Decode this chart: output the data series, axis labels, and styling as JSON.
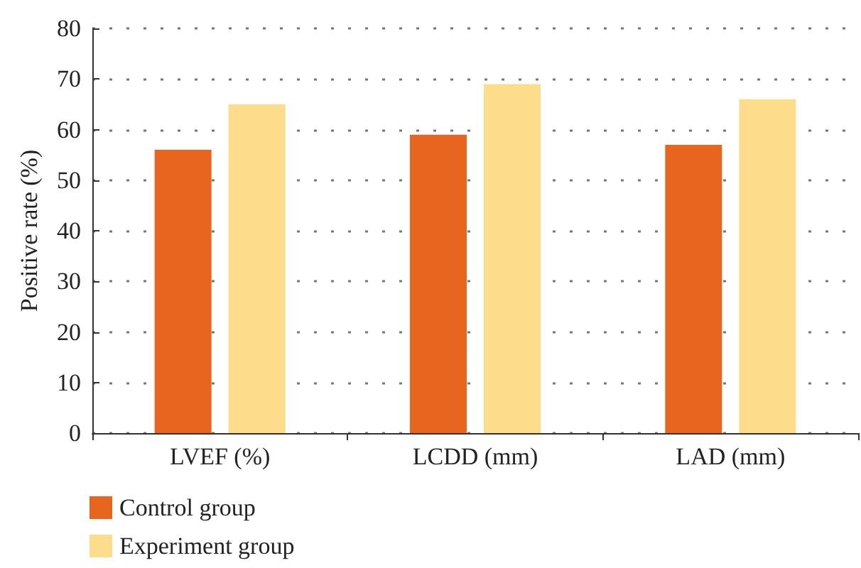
{
  "chart_data": {
    "type": "bar",
    "ylabel": "Positive rate (%)",
    "categories": [
      "LVEF (%)",
      "LCDD (mm)",
      "LAD (mm)"
    ],
    "series": [
      {
        "name": "Control group",
        "color": "#e86520",
        "values": [
          56,
          59,
          57
        ]
      },
      {
        "name": "Experiment group",
        "color": "#fddc8c",
        "values": [
          65,
          69,
          66
        ]
      }
    ],
    "ylim": [
      0,
      80
    ],
    "yticks": [
      0,
      10,
      20,
      30,
      40,
      50,
      60,
      70,
      80
    ],
    "grid": "y",
    "legend": "bottom left"
  }
}
